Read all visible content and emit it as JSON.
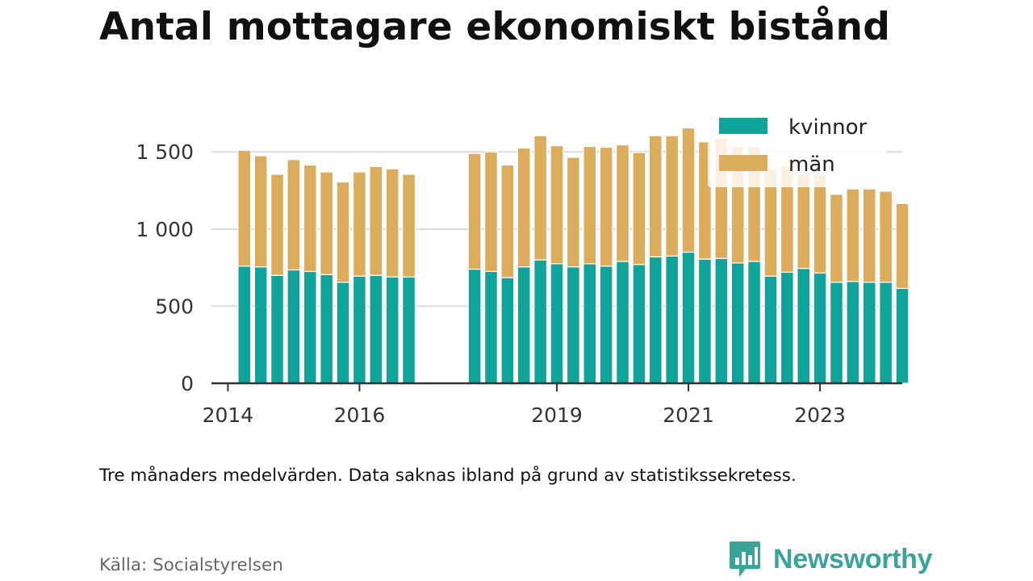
{
  "title": "Antal mottagare ekonomiskt bistånd",
  "note": "Tre månaders medelvärden. Data saknas ibland på grund av statistikssekretess.",
  "source": "Källa: Socialstyrelsen",
  "brand": {
    "name": "Newsworthy",
    "icon": "newsworthy-logo-icon"
  },
  "colors": {
    "kvinnor": "#0fa399",
    "man": "#dbac5c",
    "grid": "#dcdcdc",
    "axis": "#333333"
  },
  "chart_data": {
    "type": "bar",
    "stacked": true,
    "x_start": 2014.0,
    "x_step": 0.25,
    "x_ticks": [
      2014,
      2016,
      2019,
      2021,
      2023
    ],
    "x_tick_labels": [
      "2014",
      "2016",
      "2019",
      "2021",
      "2023"
    ],
    "xlim": [
      2013.75,
      2024.25
    ],
    "y_ticks": [
      0,
      500,
      1000,
      1500
    ],
    "y_tick_labels": [
      "0",
      "500",
      "1 000",
      "1 500"
    ],
    "ylim": [
      0,
      1700
    ],
    "grid": true,
    "legend_position": "top-right",
    "series": [
      {
        "name": "kvinnor",
        "color": "#0fa399",
        "values": [
          null,
          760,
          755,
          700,
          735,
          725,
          705,
          655,
          695,
          700,
          690,
          690,
          null,
          null,
          null,
          740,
          725,
          685,
          755,
          800,
          775,
          755,
          775,
          760,
          790,
          770,
          820,
          825,
          850,
          805,
          810,
          780,
          790,
          695,
          720,
          745,
          715,
          655,
          660,
          655,
          655,
          615,
          null
        ]
      },
      {
        "name": "män",
        "color": "#dbac5c",
        "values": [
          null,
          750,
          720,
          655,
          715,
          690,
          665,
          650,
          675,
          705,
          700,
          665,
          null,
          null,
          null,
          750,
          775,
          730,
          770,
          805,
          765,
          710,
          760,
          770,
          755,
          725,
          785,
          780,
          805,
          760,
          780,
          755,
          745,
          690,
          690,
          615,
          640,
          570,
          600,
          605,
          590,
          550,
          null
        ]
      }
    ]
  }
}
